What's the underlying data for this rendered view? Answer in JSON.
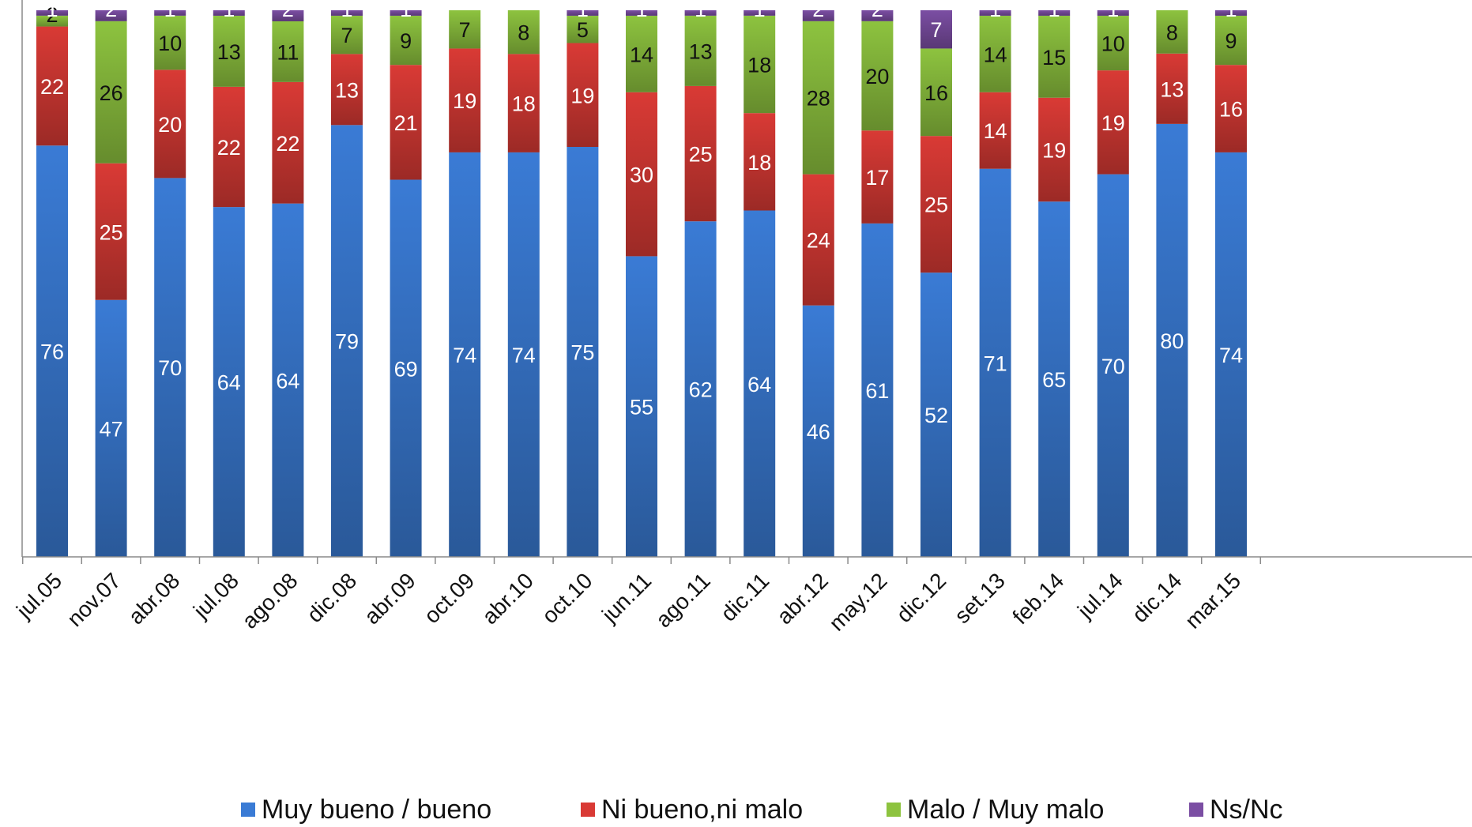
{
  "chart_data": {
    "type": "bar",
    "stacked": true,
    "categories": [
      "jul.05",
      "nov.07",
      "abr.08",
      "jul.08",
      "ago.08",
      "dic.08",
      "abr.09",
      "oct.09",
      "abr.10",
      "oct.10",
      "jun.11",
      "ago.11",
      "dic.11",
      "abr.12",
      "may.12",
      "dic.12",
      "set.13",
      "feb.14",
      "jul.14",
      "dic.14",
      "mar.15"
    ],
    "series": [
      {
        "name": "Muy bueno / bueno",
        "color": "#3a7bd5",
        "values": [
          76,
          47,
          70,
          64,
          64,
          79,
          69,
          74,
          74,
          75,
          55,
          62,
          64,
          46,
          61,
          52,
          71,
          65,
          70,
          80,
          74
        ]
      },
      {
        "name": "Ni bueno,ni malo",
        "color": "#d93a35",
        "values": [
          22,
          25,
          20,
          22,
          22,
          13,
          21,
          19,
          18,
          19,
          30,
          25,
          18,
          24,
          17,
          25,
          14,
          19,
          19,
          13,
          16
        ]
      },
      {
        "name": "Malo / Muy malo",
        "color": "#8dc33f",
        "values": [
          2,
          26,
          10,
          13,
          11,
          7,
          9,
          7,
          8,
          5,
          14,
          13,
          18,
          28,
          20,
          16,
          14,
          15,
          10,
          8,
          9
        ]
      },
      {
        "name": "Ns/Nc",
        "color": "#7b4ea3",
        "values": [
          1,
          2,
          1,
          1,
          2,
          1,
          1,
          0,
          0,
          1,
          1,
          1,
          1,
          2,
          2,
          7,
          1,
          1,
          1,
          0,
          1
        ]
      }
    ],
    "ylim": [
      0,
      100
    ],
    "grid": false,
    "legend_position": "bottom"
  }
}
